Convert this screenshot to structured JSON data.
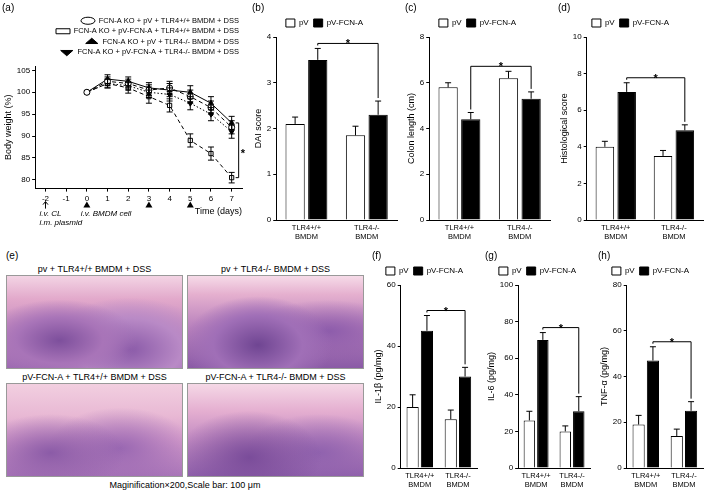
{
  "chart_data": [
    {
      "type": "line",
      "title": "(a)",
      "x_label": "Time (days)",
      "y_label": "Body weight (%)",
      "x": [
        0,
        1,
        2,
        3,
        4,
        5,
        6,
        7
      ],
      "series": [
        {
          "name": "FCN-A KO + pV + TLR4+/+ BMDM + DSS",
          "color": "#000000",
          "marker": "open-circle",
          "line_style": "dashed",
          "values": [
            100,
            102.5,
            102,
            100.5,
            101,
            99,
            96.5,
            92
          ],
          "errors": [
            0,
            1,
            1,
            1.2,
            1.5,
            1.5,
            1.5,
            1.5
          ]
        },
        {
          "name": "FCN-A KO + pV-FCN-A + TLR4+/+ BMDM + DSS",
          "color": "#000000",
          "marker": "open-square",
          "line_style": "dashed",
          "values": [
            100,
            102,
            101,
            99,
            97,
            89,
            86,
            80.5
          ],
          "errors": [
            0,
            1,
            1.2,
            1.5,
            1.5,
            1.5,
            1.5,
            1.2
          ]
        },
        {
          "name": "FCN-A KO + pV + TLR4-/- BMDM + DSS",
          "color": "#000000",
          "marker": "triangle",
          "line_style": "solid",
          "values": [
            100,
            103,
            102.5,
            101,
            100.5,
            100,
            97.5,
            93
          ],
          "errors": [
            0,
            1,
            1,
            1.2,
            1.5,
            1.5,
            1.5,
            1.5
          ]
        },
        {
          "name": "FCN-A KO + pV-FCN-A + TLR4-/- BMDM + DSS",
          "color": "#000000",
          "marker": "inverted-triangle",
          "line_style": "dotted",
          "values": [
            100,
            102,
            101.5,
            100,
            99.5,
            97.5,
            95,
            91
          ],
          "errors": [
            0,
            1,
            1,
            1.2,
            1.5,
            1.5,
            1.5,
            1.5
          ]
        }
      ],
      "xlim": [
        -2.5,
        7.5
      ],
      "xticks": [
        -2,
        -1,
        0,
        1,
        2,
        3,
        4,
        5,
        6,
        7
      ],
      "ylim": [
        78,
        106
      ],
      "yticks": [
        80,
        85,
        90,
        95,
        100,
        105
      ],
      "grid": false,
      "legend": "top",
      "annotations": [
        {
          "text": "i.v. CL",
          "x": -2
        },
        {
          "text": "i.m. plasmid",
          "x": -2
        },
        {
          "text": "i.v. BMDM cell",
          "x": 0
        },
        {
          "text": "*",
          "x": 7,
          "y": 86
        }
      ],
      "bmdm_injection_days": [
        0,
        3,
        5
      ]
    },
    {
      "type": "bar",
      "title": "(b)",
      "y_label": "DAI score",
      "categories": [
        "TLR4+/+ BMDM",
        "TLR4-/- BMDM"
      ],
      "series": [
        {
          "name": "pV",
          "color": "#ffffff",
          "values": [
            2.1,
            1.85
          ],
          "errors": [
            0.15,
            0.2
          ]
        },
        {
          "name": "pV-FCN-A",
          "color": "#000000",
          "values": [
            3.5,
            2.3
          ],
          "errors": [
            0.25,
            0.3
          ]
        }
      ],
      "ylim": [
        0,
        4
      ],
      "yticks": [
        0,
        1,
        2,
        3,
        4
      ],
      "grid": false,
      "legend": "top",
      "annotations": [
        {
          "text": "*",
          "series": "pV-FCN-A"
        }
      ]
    },
    {
      "type": "bar",
      "title": "(c)",
      "y_label": "Colon length (cm)",
      "categories": [
        "TLR4+/+ BMDM",
        "TLR4-/- BMDM"
      ],
      "series": [
        {
          "name": "pV",
          "color": "#ffffff",
          "values": [
            5.8,
            6.2
          ],
          "errors": [
            0.2,
            0.3
          ]
        },
        {
          "name": "pV-FCN-A",
          "color": "#000000",
          "values": [
            4.4,
            5.3
          ],
          "errors": [
            0.3,
            0.3
          ]
        }
      ],
      "ylim": [
        0,
        8
      ],
      "yticks": [
        0,
        2,
        4,
        6,
        8
      ],
      "grid": false,
      "legend": "top",
      "annotations": [
        {
          "text": "*",
          "series": "pV-FCN-A"
        }
      ]
    },
    {
      "type": "bar",
      "title": "(d)",
      "y_label": "Histological score",
      "categories": [
        "TLR4+/+ BMDM",
        "TLR4-/- BMDM"
      ],
      "series": [
        {
          "name": "pV",
          "color": "#ffffff",
          "values": [
            4.0,
            3.5
          ],
          "errors": [
            0.3,
            0.3
          ]
        },
        {
          "name": "pV-FCN-A",
          "color": "#000000",
          "values": [
            7.0,
            4.9
          ],
          "errors": [
            0.5,
            0.3
          ]
        }
      ],
      "ylim": [
        0,
        10
      ],
      "yticks": [
        0,
        2,
        4,
        6,
        8,
        10
      ],
      "grid": false,
      "legend": "top",
      "annotations": [
        {
          "text": "*",
          "series": "pV-FCN-A"
        }
      ]
    },
    {
      "type": "bar",
      "title": "(f)",
      "y_label": "IL-1β (pg/mg)",
      "categories": [
        "TLR4+/+ BMDM",
        "TLR4-/- BMDM"
      ],
      "series": [
        {
          "name": "pV",
          "color": "#ffffff",
          "values": [
            20,
            16
          ],
          "errors": [
            4,
            3
          ]
        },
        {
          "name": "pV-FCN-A",
          "color": "#000000",
          "values": [
            45,
            30
          ],
          "errors": [
            5,
            3
          ]
        }
      ],
      "ylim": [
        0,
        60
      ],
      "yticks": [
        0,
        20,
        40,
        60
      ],
      "grid": false,
      "legend": "top",
      "annotations": [
        {
          "text": "*",
          "series": "pV-FCN-A"
        }
      ]
    },
    {
      "type": "bar",
      "title": "(g)",
      "y_label": "IL-6 (pg/mg)",
      "categories": [
        "TLR4+/+ BMDM",
        "TLR4-/- BMDM"
      ],
      "series": [
        {
          "name": "pV",
          "color": "#ffffff",
          "values": [
            26,
            20
          ],
          "errors": [
            5,
            3
          ]
        },
        {
          "name": "pV-FCN-A",
          "color": "#000000",
          "values": [
            70,
            31
          ],
          "errors": [
            4,
            8
          ]
        }
      ],
      "ylim": [
        0,
        100
      ],
      "yticks": [
        0,
        20,
        40,
        60,
        80,
        100
      ],
      "grid": false,
      "legend": "top",
      "annotations": [
        {
          "text": "*",
          "series": "pV-FCN-A"
        }
      ]
    },
    {
      "type": "bar",
      "title": "(h)",
      "y_label": "TNF-α (pg/mg)",
      "categories": [
        "TLR4+/+ BMDM",
        "TLR4-/- BMDM"
      ],
      "series": [
        {
          "name": "pV",
          "color": "#ffffff",
          "values": [
            19,
            14
          ],
          "errors": [
            4,
            3
          ]
        },
        {
          "name": "pV-FCN-A",
          "color": "#000000",
          "values": [
            47,
            25
          ],
          "errors": [
            6,
            4
          ]
        }
      ],
      "ylim": [
        0,
        80
      ],
      "yticks": [
        0,
        20,
        40,
        60,
        80
      ],
      "grid": false,
      "legend": "top",
      "annotations": [
        {
          "text": "*",
          "series": "pV-FCN-A"
        }
      ]
    }
  ],
  "image_panel": {
    "title": "(e)",
    "images": [
      {
        "label": "pv + TLR4+/+ BMDM + DSS"
      },
      {
        "label": "pv + TLR4-/- BMDM + DSS"
      },
      {
        "label": "pV-FCN-A + TLR4+/+ BMDM + DSS"
      },
      {
        "label": "pV-FCN-A + TLR4-/- BMDM + DSS"
      }
    ],
    "caption": "Maginification×200,Scale bar: 100 μm"
  }
}
